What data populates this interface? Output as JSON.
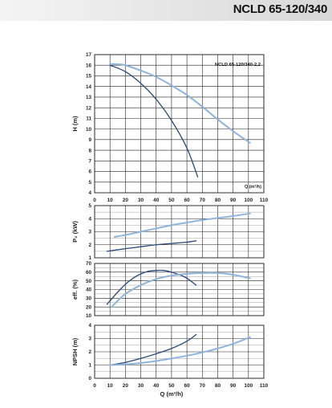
{
  "header": {
    "model_code": "NCLD 65-120/340"
  },
  "colors": {
    "dark_curve": "#2b4a78",
    "light_curve": "#8fb4dc",
    "grid": "#222222",
    "header_band": "#e6e6e6"
  },
  "chart_data": [
    {
      "type": "line",
      "ylabel": "H (m)",
      "xlabel": "Q (m³/h)",
      "xlim": [
        0,
        110
      ],
      "ylim": [
        4,
        17
      ],
      "x_ticks": [
        "0",
        "10",
        "20",
        "30",
        "40",
        "50",
        "60",
        "70",
        "80",
        "90",
        "100",
        "110"
      ],
      "y_ticks": [
        "4",
        "5",
        "6",
        "7",
        "8",
        "9",
        "10",
        "11",
        "12",
        "13",
        "14",
        "15",
        "16",
        "17"
      ],
      "inner_xlabel": "Q (m³/h)",
      "annotation": "NCLD 65-120/340-2,2",
      "grid": true,
      "series": [
        {
          "color": "dark",
          "points": [
            [
              10,
              16
            ],
            [
              20,
              15.4
            ],
            [
              30,
              14.3
            ],
            [
              40,
              12.8
            ],
            [
              50,
              10.8
            ],
            [
              60,
              8.2
            ],
            [
              67,
              5.5
            ]
          ]
        },
        {
          "color": "light",
          "points": [
            [
              10,
              16.1
            ],
            [
              15,
              16.1
            ],
            [
              20,
              16
            ],
            [
              30,
              15.5
            ],
            [
              40,
              14.9
            ],
            [
              50,
              14.1
            ],
            [
              60,
              13.2
            ],
            [
              70,
              12.1
            ],
            [
              80,
              10.9
            ],
            [
              90,
              9.8
            ],
            [
              101,
              8.7
            ]
          ]
        }
      ]
    },
    {
      "type": "line",
      "ylabel": "P₂ (kW)",
      "xlim": [
        0,
        110
      ],
      "ylim": [
        1,
        5
      ],
      "y_ticks": [
        "1",
        "2",
        "3",
        "4",
        "5"
      ],
      "grid": true,
      "series": [
        {
          "color": "dark",
          "points": [
            [
              8,
              1.5
            ],
            [
              20,
              1.7
            ],
            [
              30,
              1.85
            ],
            [
              40,
              2
            ],
            [
              50,
              2.1
            ],
            [
              60,
              2.2
            ],
            [
              66,
              2.3
            ]
          ]
        },
        {
          "color": "light",
          "points": [
            [
              13,
              2.6
            ],
            [
              20,
              2.75
            ],
            [
              30,
              3
            ],
            [
              40,
              3.25
            ],
            [
              50,
              3.5
            ],
            [
              60,
              3.7
            ],
            [
              70,
              3.9
            ],
            [
              80,
              4.05
            ],
            [
              90,
              4.2
            ],
            [
              101,
              4.4
            ]
          ]
        }
      ]
    },
    {
      "type": "line",
      "ylabel": "eff. (%)",
      "xlim": [
        0,
        110
      ],
      "ylim": [
        10,
        70
      ],
      "y_ticks": [
        "10",
        "20",
        "30",
        "40",
        "50",
        "60",
        "70"
      ],
      "grid": true,
      "series": [
        {
          "color": "dark",
          "points": [
            [
              8,
              23
            ],
            [
              15,
              37
            ],
            [
              20,
              46
            ],
            [
              25,
              53
            ],
            [
              30,
              58
            ],
            [
              35,
              61
            ],
            [
              40,
              62
            ],
            [
              45,
              62
            ],
            [
              50,
              60
            ],
            [
              55,
              57
            ],
            [
              60,
              53
            ],
            [
              66,
              45
            ]
          ]
        },
        {
          "color": "light",
          "points": [
            [
              11,
              20
            ],
            [
              15,
              27
            ],
            [
              20,
              35
            ],
            [
              30,
              45
            ],
            [
              40,
              52
            ],
            [
              50,
              56
            ],
            [
              60,
              58
            ],
            [
              70,
              59
            ],
            [
              80,
              59
            ],
            [
              90,
              57
            ],
            [
              101,
              53
            ]
          ]
        }
      ]
    },
    {
      "type": "line",
      "ylabel": "NPSH (m)",
      "xlabel": "Q (m³/h)",
      "xlim": [
        0,
        110
      ],
      "ylim": [
        0,
        4
      ],
      "x_ticks": [
        "0",
        "10",
        "20",
        "30",
        "40",
        "50",
        "60",
        "70",
        "80",
        "90",
        "100",
        "110"
      ],
      "y_ticks": [
        "0",
        "1",
        "2",
        "3",
        "4"
      ],
      "grid": true,
      "series": [
        {
          "color": "dark",
          "points": [
            [
              10,
              1
            ],
            [
              20,
              1.2
            ],
            [
              30,
              1.5
            ],
            [
              40,
              1.85
            ],
            [
              50,
              2.25
            ],
            [
              60,
              2.8
            ],
            [
              66,
              3.3
            ]
          ]
        },
        {
          "color": "light",
          "points": [
            [
              10,
              1
            ],
            [
              20,
              1.05
            ],
            [
              30,
              1.15
            ],
            [
              40,
              1.3
            ],
            [
              50,
              1.5
            ],
            [
              60,
              1.7
            ],
            [
              70,
              1.95
            ],
            [
              80,
              2.25
            ],
            [
              90,
              2.6
            ],
            [
              101,
              3.1
            ]
          ]
        }
      ]
    }
  ]
}
